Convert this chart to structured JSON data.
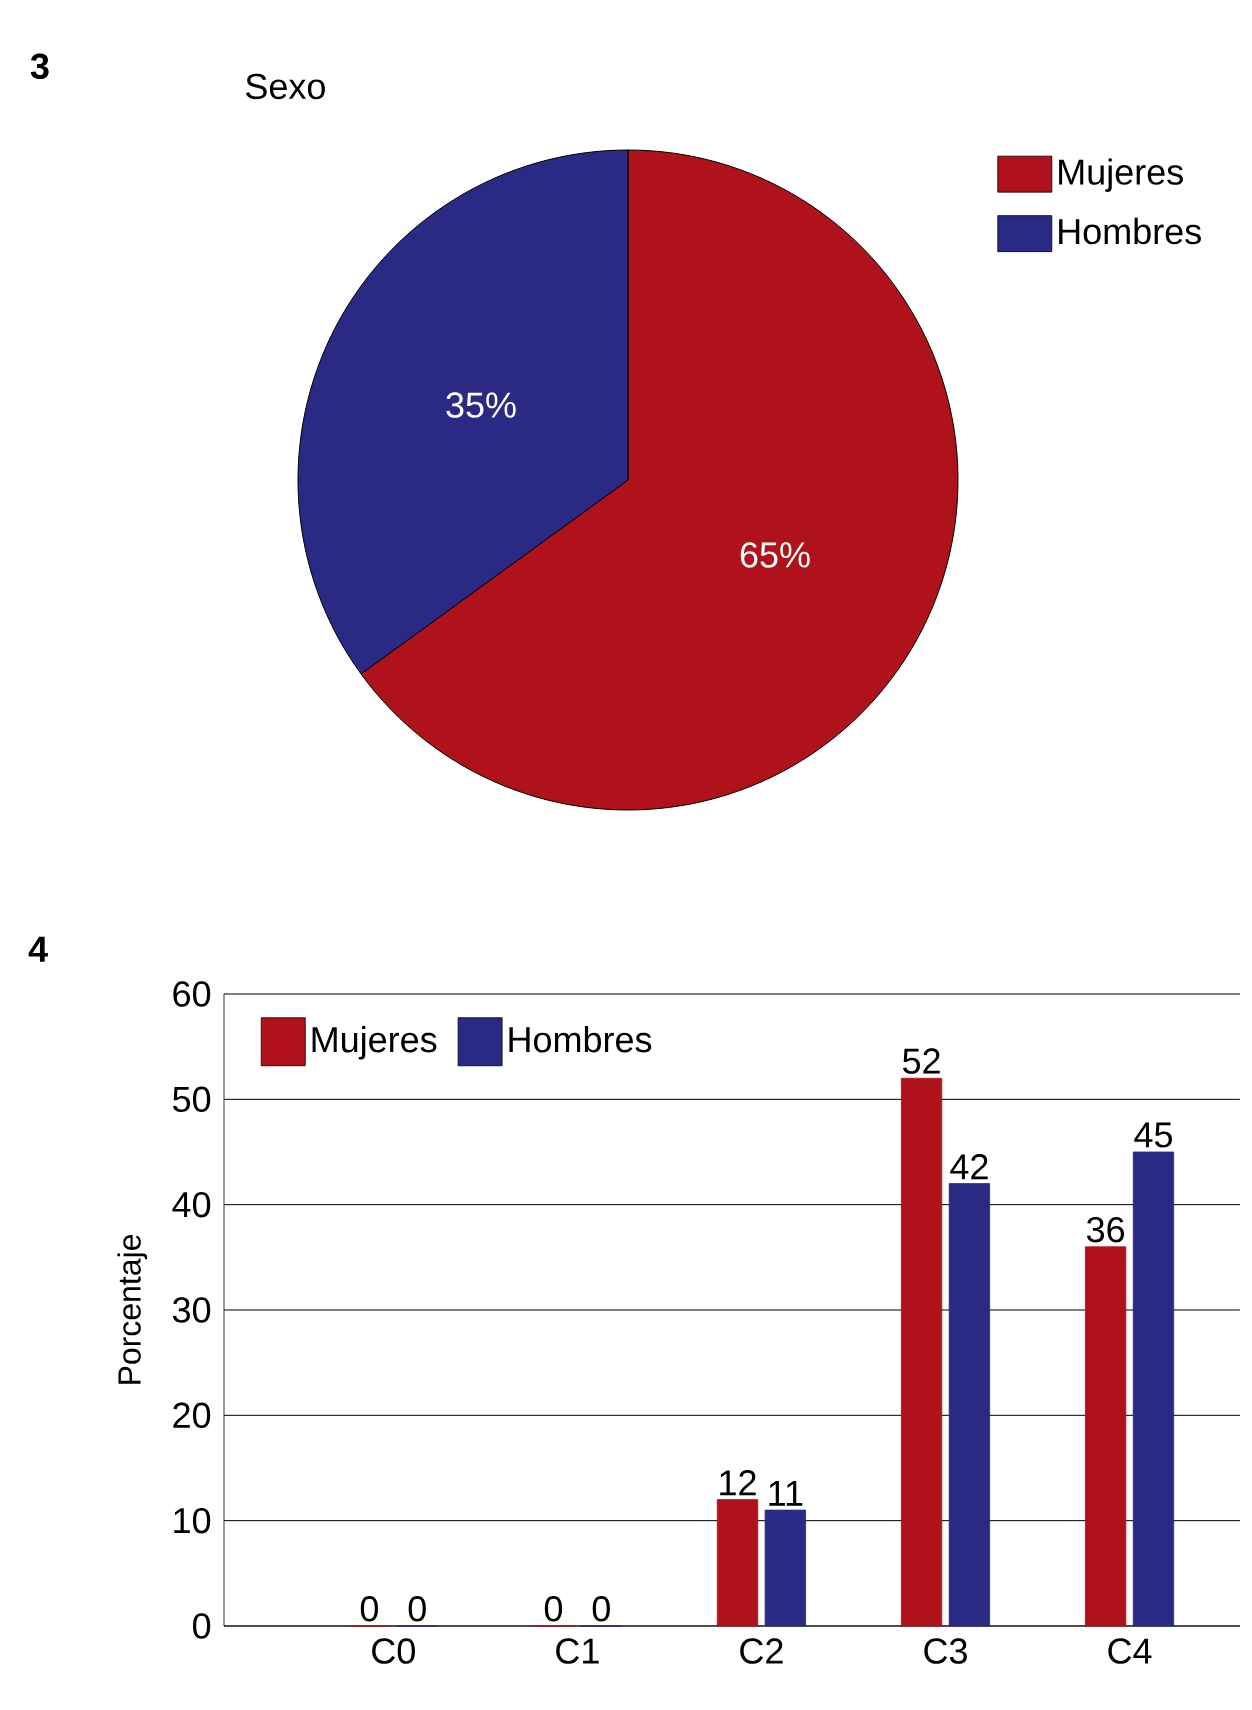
{
  "chart_data": [
    {
      "type": "pie",
      "title": "Sexo",
      "categories": [
        "Mujeres",
        "Hombres"
      ],
      "values": [
        65,
        35
      ],
      "colors": [
        "#b0121b",
        "#2a2a84"
      ],
      "value_labels": [
        "65%",
        "35%"
      ],
      "legend": "right",
      "annotations": [
        "3"
      ]
    },
    {
      "type": "bar",
      "categories": [
        "C0",
        "C1",
        "C2",
        "C3",
        "C4"
      ],
      "series": [
        {
          "name": "Mujeres",
          "color": "#b0121b",
          "values": [
            0,
            0,
            12,
            52,
            36
          ]
        },
        {
          "name": "Hombres",
          "color": "#2a2a84",
          "values": [
            0,
            0,
            11,
            42,
            45
          ]
        }
      ],
      "ylabel": "Porcentaje",
      "ylim": [
        0,
        60
      ],
      "yticks": [
        0,
        10,
        20,
        30,
        40,
        50,
        60
      ],
      "grid": "y",
      "legend": "top left",
      "data_labels": true,
      "annotations": [
        "4"
      ]
    }
  ]
}
